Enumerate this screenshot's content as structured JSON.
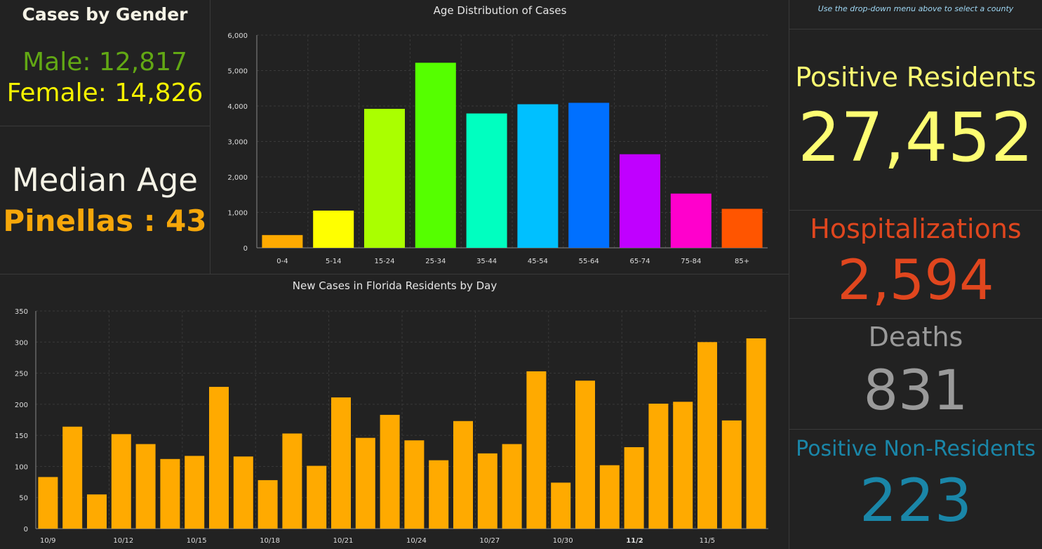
{
  "gender": {
    "title": "Cases by Gender",
    "male": "Male: 12,817",
    "female": "Female: 14,826"
  },
  "median": {
    "title": "Median Age",
    "value": "Pinellas : 43"
  },
  "hint": "Use the drop-down menu above to select a county",
  "stats": {
    "positive_residents": {
      "label": "Positive Residents",
      "value": "27,452",
      "color": "#fdfd72"
    },
    "hospitalizations": {
      "label": "Hospitalizations",
      "value": "2,594",
      "color": "#e0461e"
    },
    "deaths": {
      "label": "Deaths",
      "value": "831",
      "color": "#9a9a9a"
    },
    "non_residents": {
      "label": "Positive Non-Residents",
      "value": "223",
      "color": "#1a86a8"
    }
  },
  "chart_data": [
    {
      "type": "bar",
      "title": "Age Distribution of Cases",
      "categories": [
        "0-4",
        "5-14",
        "15-24",
        "25-34",
        "35-44",
        "45-54",
        "55-64",
        "65-74",
        "75-84",
        "85+"
      ],
      "values": [
        360,
        1050,
        3920,
        5220,
        3790,
        4050,
        4090,
        2640,
        1530,
        1100
      ],
      "colors": [
        "#ffaa00",
        "#ffff00",
        "#aaff00",
        "#55ff00",
        "#00ffc0",
        "#00c0ff",
        "#0070ff",
        "#c000ff",
        "#ff00cc",
        "#ff5500"
      ],
      "ylim": [
        0,
        6000
      ],
      "yticks": [
        "0",
        "1,000",
        "2,000",
        "3,000",
        "4,000",
        "5,000",
        "6,000"
      ],
      "grid": true
    },
    {
      "type": "bar",
      "title": "New Cases in Florida Residents by Day",
      "values": [
        83,
        164,
        55,
        152,
        136,
        112,
        117,
        228,
        116,
        78,
        153,
        101,
        211,
        146,
        183,
        142,
        110,
        173,
        121,
        136,
        253,
        74,
        238,
        102,
        131,
        201,
        204,
        300,
        174,
        306
      ],
      "x_tick_labels": [
        "10/9",
        "10/12",
        "10/15",
        "10/18",
        "10/21",
        "10/24",
        "10/27",
        "10/30",
        "11/2",
        "11/5"
      ],
      "bold_tick": "11/2",
      "ylim": [
        0,
        350
      ],
      "yticks": [
        "0",
        "50",
        "100",
        "150",
        "200",
        "250",
        "300",
        "350"
      ],
      "color": "#ffaa00",
      "grid": true
    }
  ]
}
